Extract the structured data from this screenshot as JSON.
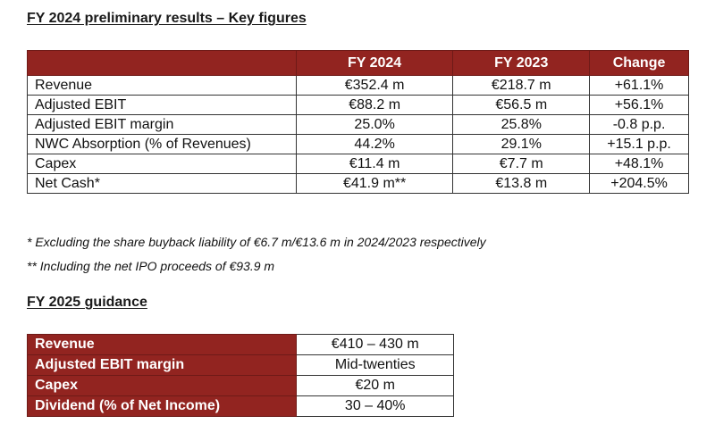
{
  "results": {
    "heading": "FY 2024 preliminary results – Key figures",
    "columns": [
      "",
      "FY 2024",
      "FY 2023",
      "Change"
    ],
    "rows": [
      {
        "label": "Revenue",
        "fy2024": "€352.4 m",
        "fy2023": "€218.7 m",
        "change": "+61.1%"
      },
      {
        "label": "Adjusted EBIT",
        "fy2024": "€88.2 m",
        "fy2023": "€56.5 m",
        "change": "+56.1%"
      },
      {
        "label": "Adjusted EBIT margin",
        "fy2024": "25.0%",
        "fy2023": "25.8%",
        "change": "-0.8 p.p."
      },
      {
        "label": "NWC Absorption (% of Revenues)",
        "fy2024": "44.2%",
        "fy2023": "29.1%",
        "change": "+15.1 p.p."
      },
      {
        "label": "Capex",
        "fy2024": "€11.4 m",
        "fy2023": "€7.7 m",
        "change": "+48.1%"
      },
      {
        "label": "Net Cash*",
        "fy2024": "€41.9 m**",
        "fy2023": "€13.8 m",
        "change": "+204.5%"
      }
    ],
    "footnotes": [
      "* Excluding the share buyback liability of €6.7 m/€13.6 m in 2024/2023 respectively",
      "** Including the net IPO proceeds of €93.9 m"
    ]
  },
  "guidance": {
    "heading": "FY 2025 guidance",
    "rows": [
      {
        "label": "Revenue",
        "value": "€410 – 430 m"
      },
      {
        "label": "Adjusted EBIT margin",
        "value": "Mid-twenties"
      },
      {
        "label": "Capex",
        "value": "€20 m"
      },
      {
        "label": "Dividend (% of Net Income)",
        "value": "30 – 40%"
      }
    ]
  },
  "colors": {
    "header_fill": "#922420",
    "header_text": "#ffffff",
    "border": "#333333"
  }
}
